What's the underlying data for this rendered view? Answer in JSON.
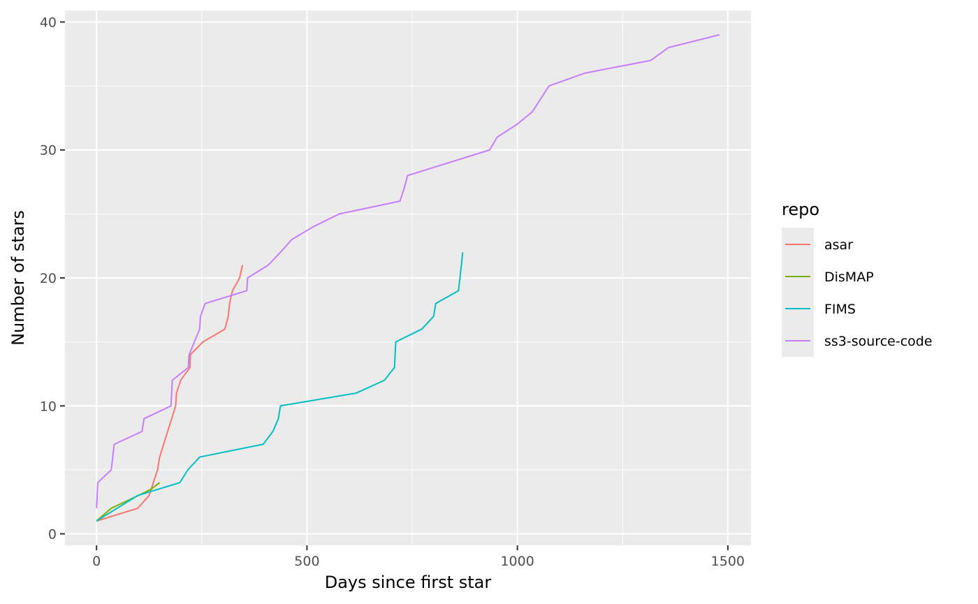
{
  "chart_data": {
    "type": "line",
    "title": "",
    "xlabel": "Days since first star",
    "ylabel": "Number of stars",
    "xlim": [
      -75,
      1555
    ],
    "ylim": [
      -0.9,
      40.9
    ],
    "x_ticks": [
      0,
      500,
      1000,
      1500
    ],
    "x_tick_labels": [
      "0",
      "500",
      "1000",
      "1500"
    ],
    "y_ticks": [
      0,
      10,
      20,
      30,
      40
    ],
    "y_tick_labels": [
      "0",
      "10",
      "20",
      "30",
      "40"
    ],
    "grid": true,
    "legend": {
      "title": "repo",
      "position": "right"
    },
    "series": [
      {
        "name": "asar",
        "color": "#F8766D",
        "points": [
          [
            0,
            1
          ],
          [
            98,
            2
          ],
          [
            125,
            3
          ],
          [
            145,
            5
          ],
          [
            150,
            6
          ],
          [
            188,
            10
          ],
          [
            190,
            11
          ],
          [
            200,
            12
          ],
          [
            222,
            13
          ],
          [
            223,
            14
          ],
          [
            253,
            15
          ],
          [
            305,
            16
          ],
          [
            313,
            17
          ],
          [
            316,
            18
          ],
          [
            323,
            19
          ],
          [
            340,
            20
          ],
          [
            347,
            21
          ]
        ]
      },
      {
        "name": "DisMAP",
        "color": "#7CAE00",
        "points": [
          [
            0,
            1
          ],
          [
            35,
            2
          ],
          [
            100,
            3
          ],
          [
            130,
            3.5
          ],
          [
            150,
            4
          ]
        ]
      },
      {
        "name": "FIMS",
        "color": "#00BFC4",
        "points": [
          [
            0,
            1
          ],
          [
            98,
            3
          ],
          [
            198,
            4
          ],
          [
            217,
            5
          ],
          [
            245,
            6
          ],
          [
            396,
            7
          ],
          [
            419,
            8
          ],
          [
            432,
            9
          ],
          [
            437,
            10
          ],
          [
            617,
            11
          ],
          [
            684,
            12
          ],
          [
            708,
            13
          ],
          [
            711,
            15
          ],
          [
            773,
            16
          ],
          [
            801,
            17
          ],
          [
            806,
            18
          ],
          [
            860,
            19
          ],
          [
            867,
            21
          ],
          [
            870,
            22
          ]
        ]
      },
      {
        "name": "ss3-source-code",
        "color": "#C77CFF",
        "points": [
          [
            0,
            2
          ],
          [
            3,
            4
          ],
          [
            35,
            5
          ],
          [
            42,
            7
          ],
          [
            108,
            8
          ],
          [
            113,
            9
          ],
          [
            177,
            10
          ],
          [
            180,
            12
          ],
          [
            218,
            13
          ],
          [
            220,
            14
          ],
          [
            245,
            16
          ],
          [
            247,
            17
          ],
          [
            258,
            18
          ],
          [
            357,
            19
          ],
          [
            359,
            20
          ],
          [
            408,
            21
          ],
          [
            437,
            22
          ],
          [
            464,
            23
          ],
          [
            515,
            24
          ],
          [
            577,
            25
          ],
          [
            721,
            26
          ],
          [
            731,
            27
          ],
          [
            739,
            28
          ],
          [
            934,
            30
          ],
          [
            952,
            31
          ],
          [
            999,
            32
          ],
          [
            1036,
            33
          ],
          [
            1075,
            35
          ],
          [
            1160,
            36
          ],
          [
            1317,
            37
          ],
          [
            1359,
            38
          ],
          [
            1480,
            39
          ]
        ]
      }
    ]
  }
}
